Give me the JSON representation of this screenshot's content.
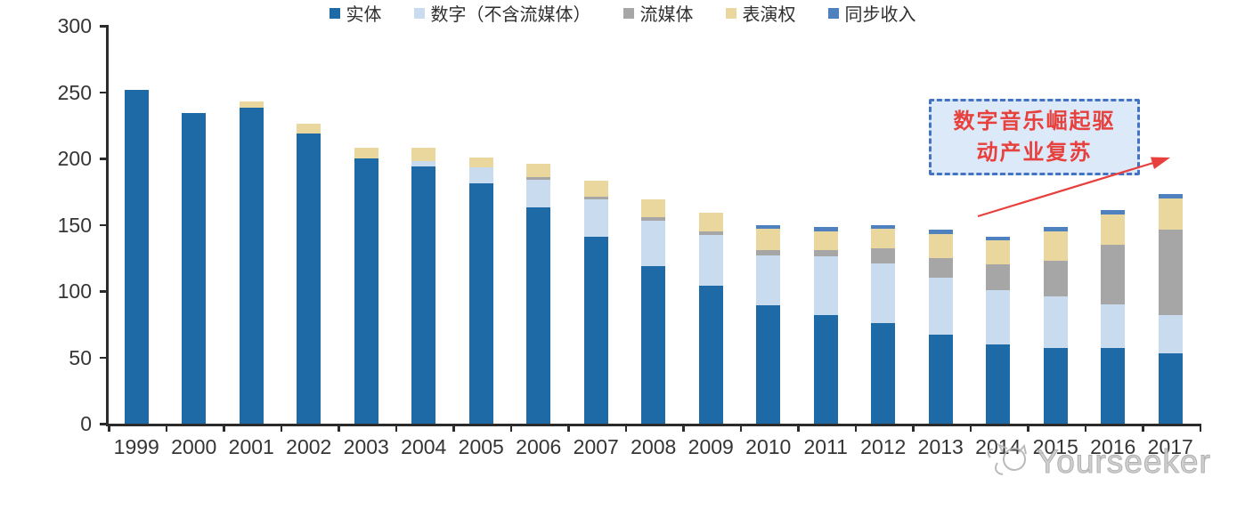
{
  "chart_data": {
    "type": "bar",
    "stacked": true,
    "title": "",
    "xlabel": "",
    "ylabel": "",
    "categories": [
      "1999",
      "2000",
      "2001",
      "2002",
      "2003",
      "2004",
      "2005",
      "2006",
      "2007",
      "2008",
      "2009",
      "2010",
      "2011",
      "2012",
      "2013",
      "2014",
      "2015",
      "2016",
      "2017"
    ],
    "series": [
      {
        "name": "实体",
        "color": "#1E6AA7",
        "values": [
          252,
          234,
          238,
          219,
          200,
          194,
          181,
          163,
          141,
          119,
          104,
          89,
          82,
          76,
          67,
          60,
          57,
          57,
          53
        ]
      },
      {
        "name": "数字（不含流媒体）",
        "color": "#C9DCEF",
        "values": [
          0,
          0,
          0,
          0,
          0,
          4,
          12,
          21,
          28,
          34,
          38,
          38,
          44,
          45,
          43,
          41,
          39,
          33,
          29
        ]
      },
      {
        "name": "流媒体",
        "color": "#A6A6A6",
        "values": [
          0,
          0,
          0,
          0,
          0,
          0,
          0,
          2,
          2,
          3,
          3,
          4,
          5,
          11,
          15,
          19,
          27,
          45,
          64
        ]
      },
      {
        "name": "表演权",
        "color": "#E9D79E",
        "values": [
          0,
          0,
          5,
          7,
          8,
          10,
          8,
          10,
          12,
          13,
          14,
          16,
          14,
          15,
          18,
          18,
          22,
          23,
          24
        ]
      },
      {
        "name": "同步收入",
        "color": "#4E81BD",
        "values": [
          0,
          0,
          0,
          0,
          0,
          0,
          0,
          0,
          0,
          0,
          0,
          3,
          3,
          3,
          3,
          3,
          3,
          3,
          3
        ]
      }
    ],
    "ylim": [
      0,
      300
    ],
    "yticks": [
      0,
      50,
      100,
      150,
      200,
      250,
      300
    ],
    "legend_position": "bottom",
    "grid": false,
    "axis_color": "#2b2b2b"
  },
  "annotation": {
    "lines": [
      "数字音乐崛起驱",
      "动产业复苏"
    ],
    "box_fill": "#dbe9f8",
    "box_border_color": "#4472c4",
    "text_color": "#e8403c",
    "arrow_color": "#e8403c"
  },
  "watermark": {
    "text": "Yourseeker",
    "icon": "cat-logo-icon",
    "color": "#cccccc"
  }
}
